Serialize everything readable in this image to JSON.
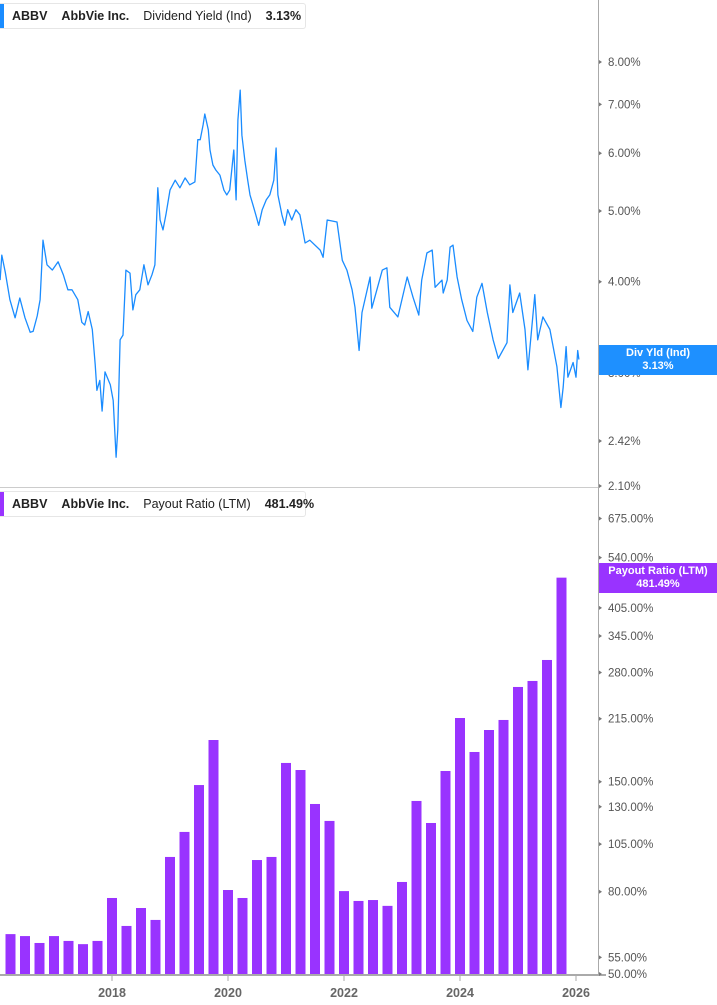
{
  "top_legend": {
    "ticker": "ABBV",
    "company": "AbbVie Inc.",
    "metric": "Dividend Yield (Ind)",
    "value": "3.13%"
  },
  "bottom_legend": {
    "ticker": "ABBV",
    "company": "AbbVie Inc.",
    "metric": "Payout Ratio (LTM)",
    "value": "481.49%"
  },
  "top_badge": {
    "label": "Div Yld (Ind)",
    "value": "3.13%"
  },
  "bottom_badge": {
    "label": "Payout Ratio (LTM)",
    "value": "481.49%"
  },
  "colors": {
    "yield_line": "#1a8cff",
    "payout_bars": "#9933ff",
    "axis": "#aaaaaa"
  },
  "chart_data": [
    {
      "type": "line",
      "title": "",
      "series": [
        {
          "name": "Dividend Yield (Ind)",
          "x": [
            2016.07,
            2016.1,
            2016.16,
            2016.24,
            2016.33,
            2016.41,
            2016.5,
            2016.59,
            2016.64,
            2016.71,
            2016.76,
            2016.81,
            2016.88,
            2016.97,
            2017.07,
            2017.16,
            2017.24,
            2017.31,
            2017.41,
            2017.48,
            2017.53,
            2017.59,
            2017.66,
            2017.71,
            2017.74,
            2017.79,
            2017.83,
            2017.88,
            2017.97,
            2018.02,
            2018.07,
            2018.1,
            2018.14,
            2018.19,
            2018.24,
            2018.31,
            2018.36,
            2018.41,
            2018.48,
            2018.55,
            2018.62,
            2018.69,
            2018.74,
            2018.79,
            2018.83,
            2018.88,
            2018.93,
            2019.0,
            2019.09,
            2019.17,
            2019.26,
            2019.34,
            2019.43,
            2019.48,
            2019.52,
            2019.57,
            2019.6,
            2019.66,
            2019.69,
            2019.74,
            2019.79,
            2019.86,
            2019.93,
            2019.98,
            2020.03,
            2020.1,
            2020.14,
            2020.17,
            2020.21,
            2020.24,
            2020.29,
            2020.34,
            2020.38,
            2020.43,
            2020.48,
            2020.53,
            2020.59,
            2020.66,
            2020.72,
            2020.79,
            2020.83,
            2020.86,
            2020.93,
            2020.98,
            2021.03,
            2021.1,
            2021.17,
            2021.24,
            2021.33,
            2021.41,
            2021.59,
            2021.64,
            2021.71,
            2021.88,
            2021.97,
            2022.05,
            2022.14,
            2022.19,
            2022.26,
            2022.31,
            2022.45,
            2022.48,
            2022.66,
            2022.74,
            2022.79,
            2022.93,
            2023.09,
            2023.19,
            2023.29,
            2023.34,
            2023.43,
            2023.52,
            2023.57,
            2023.69,
            2023.71,
            2023.78,
            2023.83,
            2023.88,
            2023.95,
            2024.03,
            2024.12,
            2024.22,
            2024.29,
            2024.38,
            2024.47,
            2024.57,
            2024.66,
            2024.81,
            2024.86,
            2024.91,
            2025.03,
            2025.12,
            2025.17,
            2025.29,
            2025.34,
            2025.43,
            2025.55,
            2025.67,
            2025.74,
            2025.78,
            2025.83,
            2025.86,
            2025.95,
            2026.0,
            2026.03,
            2026.05
          ],
          "values": [
            4.02,
            4.35,
            4.12,
            3.78,
            3.57,
            3.8,
            3.57,
            3.41,
            3.42,
            3.59,
            3.78,
            4.56,
            4.22,
            4.15,
            4.26,
            4.09,
            3.9,
            3.9,
            3.78,
            3.52,
            3.49,
            3.64,
            3.44,
            3.08,
            2.84,
            2.93,
            2.66,
            3.01,
            2.89,
            2.75,
            2.3,
            2.51,
            3.33,
            3.38,
            4.15,
            4.11,
            3.66,
            3.84,
            3.9,
            4.22,
            3.96,
            4.09,
            4.22,
            5.38,
            4.86,
            4.71,
            4.94,
            5.34,
            5.51,
            5.38,
            5.55,
            5.43,
            5.48,
            6.26,
            6.26,
            6.56,
            6.79,
            6.46,
            6.06,
            5.78,
            5.69,
            5.6,
            5.34,
            5.26,
            5.34,
            6.06,
            5.18,
            6.66,
            7.32,
            6.35,
            5.87,
            5.51,
            5.26,
            5.1,
            4.94,
            4.78,
            5.02,
            5.18,
            5.26,
            5.51,
            6.1,
            5.26,
            4.94,
            4.78,
            5.02,
            4.86,
            5.02,
            4.94,
            4.52,
            4.56,
            4.42,
            4.32,
            4.86,
            4.83,
            4.28,
            4.15,
            3.9,
            3.69,
            3.22,
            3.63,
            4.06,
            3.68,
            4.15,
            4.18,
            3.69,
            3.58,
            4.06,
            3.81,
            3.6,
            4.02,
            4.38,
            4.42,
            3.93,
            4.02,
            3.86,
            4.02,
            4.46,
            4.49,
            4.06,
            3.78,
            3.54,
            3.42,
            3.81,
            3.98,
            3.63,
            3.33,
            3.14,
            3.3,
            3.96,
            3.63,
            3.86,
            3.44,
            3.03,
            3.84,
            3.33,
            3.58,
            3.44,
            3.06,
            2.69,
            2.87,
            3.26,
            2.96,
            3.1,
            2.96,
            3.22,
            3.13
          ]
        }
      ],
      "y_scale": "log",
      "ylim": [
        2.1,
        9.0
      ],
      "xlim": [
        2016.07,
        2026.5
      ],
      "y_ticks": [
        8.0,
        7.0,
        6.0,
        5.0,
        4.0,
        3.0,
        2.42,
        2.1
      ],
      "y_tick_labels": [
        "8.00%",
        "7.00%",
        "6.00%",
        "5.00%",
        "4.00%",
        "3.00%",
        "2.42%",
        "2.10%"
      ],
      "grid": false
    },
    {
      "type": "bar",
      "title": "",
      "categories": [
        2016.25,
        2016.5,
        2016.75,
        2017.0,
        2017.25,
        2017.5,
        2017.75,
        2018.0,
        2018.25,
        2018.5,
        2018.75,
        2019.0,
        2019.25,
        2019.5,
        2019.75,
        2020.0,
        2020.25,
        2020.5,
        2020.75,
        2021.0,
        2021.25,
        2021.5,
        2021.75,
        2022.0,
        2022.25,
        2022.5,
        2022.75,
        2023.0,
        2023.25,
        2023.5,
        2023.75,
        2024.0,
        2024.25,
        2024.5,
        2024.75,
        2025.0,
        2025.25,
        2025.5,
        2025.75
      ],
      "series": [
        {
          "name": "Payout Ratio (LTM)",
          "values": [
            62.8,
            62.1,
            59.7,
            62.1,
            60.4,
            59.3,
            60.4,
            77.2,
            65.8,
            72.9,
            68.1,
            97.6,
            112.6,
            147.2,
            190.4,
            80.8,
            77.2,
            95.9,
            97.6,
            167.0,
            160.4,
            132.1,
            119.9,
            80.3,
            75.9,
            76.3,
            73.8,
            84.6,
            134.4,
            118.5,
            159.5,
            215.9,
            177.8,
            201.6,
            213.5,
            257.8,
            266.8,
            300.8,
            481.49
          ]
        }
      ],
      "y_scale": "log",
      "ylim": [
        50,
        800
      ],
      "y_ticks": [
        675,
        540,
        405,
        345,
        280,
        215,
        150,
        130,
        105,
        80,
        55,
        50
      ],
      "y_tick_labels": [
        "675.00%",
        "540.00%",
        "405.00%",
        "345.00%",
        "280.00%",
        "215.00%",
        "150.00%",
        "130.00%",
        "105.00%",
        "80.00%",
        "55.00%",
        "50.00%"
      ],
      "x_ticks": [
        2018,
        2020,
        2022,
        2024,
        2026
      ],
      "x_tick_labels": [
        "2018",
        "2020",
        "2022",
        "2024",
        "2026"
      ],
      "grid": false
    }
  ]
}
